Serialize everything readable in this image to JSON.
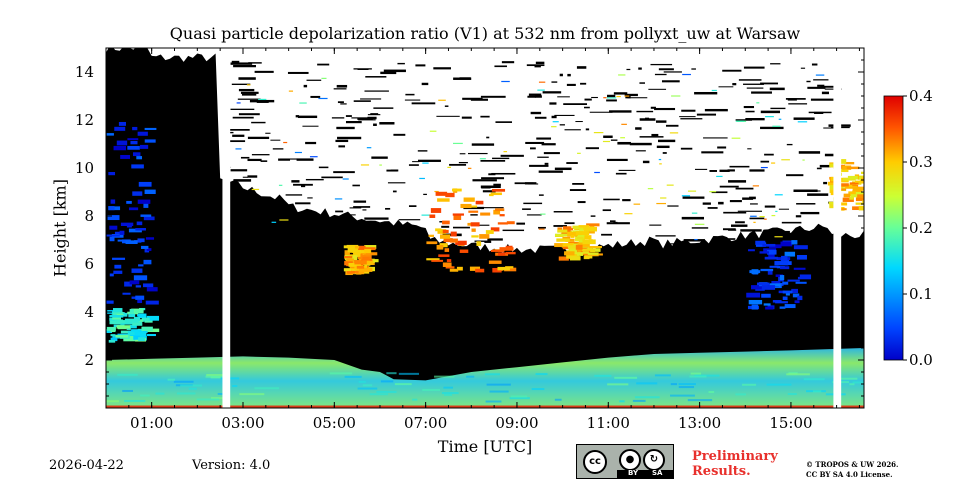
{
  "chart_data": {
    "type": "heatmap",
    "title": "Quasi particle depolarization ratio (V1) at 532 nm from pollyxt_uw at Warsaw",
    "xlabel": "Time [UTC]",
    "ylabel": "Height [km]",
    "xlim": [
      0,
      16.6
    ],
    "ylim": [
      0,
      15
    ],
    "x_ticks": [
      {
        "value": 1,
        "label": "01:00"
      },
      {
        "value": 3,
        "label": "03:00"
      },
      {
        "value": 5,
        "label": "05:00"
      },
      {
        "value": 7,
        "label": "07:00"
      },
      {
        "value": 9,
        "label": "09:00"
      },
      {
        "value": 11,
        "label": "11:00"
      },
      {
        "value": 13,
        "label": "13:00"
      },
      {
        "value": 15,
        "label": "15:00"
      }
    ],
    "y_ticks": [
      {
        "value": 2,
        "label": "2"
      },
      {
        "value": 4,
        "label": "4"
      },
      {
        "value": 6,
        "label": "6"
      },
      {
        "value": 8,
        "label": "8"
      },
      {
        "value": 10,
        "label": "10"
      },
      {
        "value": 12,
        "label": "12"
      },
      {
        "value": 14,
        "label": "14"
      }
    ],
    "colorbar": {
      "range": [
        0,
        0.4
      ],
      "ticks": [
        {
          "value": 0.0,
          "label": "0.0"
        },
        {
          "value": 0.1,
          "label": "0.1"
        },
        {
          "value": 0.2,
          "label": "0.2"
        },
        {
          "value": 0.3,
          "label": "0.3"
        },
        {
          "value": 0.4,
          "label": "0.4"
        }
      ]
    },
    "no_data_gaps": [
      [
        2.55,
        2.72
      ],
      [
        15.93,
        16.1
      ]
    ],
    "boundary_layer_top_km": [
      [
        0,
        2.0
      ],
      [
        1,
        2.05
      ],
      [
        2,
        2.1
      ],
      [
        3,
        2.15
      ],
      [
        4,
        2.1
      ],
      [
        5,
        2.0
      ],
      [
        5.6,
        1.6
      ],
      [
        6,
        1.5
      ],
      [
        6.3,
        1.2
      ],
      [
        7,
        1.15
      ],
      [
        8,
        1.5
      ],
      [
        9,
        1.7
      ],
      [
        10,
        1.9
      ],
      [
        11,
        2.1
      ],
      [
        12,
        2.25
      ],
      [
        13,
        2.3
      ],
      [
        14,
        2.35
      ],
      [
        15,
        2.4
      ],
      [
        16.6,
        2.5
      ]
    ],
    "aerosol_layers": [
      {
        "name": "elevated-layer-early",
        "t": [
          0.0,
          0.9
        ],
        "h": [
          2.8,
          4.2
        ],
        "value": 0.17
      },
      {
        "name": "blue-column-early",
        "t": [
          0.0,
          0.9
        ],
        "h": [
          4.2,
          12.0
        ],
        "value": 0.03
      },
      {
        "name": "depol-patch-0530",
        "t": [
          5.2,
          5.7
        ],
        "h": [
          5.7,
          6.8
        ],
        "value": 0.31
      },
      {
        "name": "cirrus-0700-0900",
        "t": [
          7.0,
          8.8
        ],
        "h": [
          5.8,
          9.2
        ],
        "value": 0.33
      },
      {
        "name": "cirrus-1000",
        "t": [
          9.8,
          10.6
        ],
        "h": [
          6.3,
          7.7
        ],
        "value": 0.3
      },
      {
        "name": "blue-columns-1400",
        "t": [
          14.0,
          15.2
        ],
        "h": [
          4.2,
          7.0
        ],
        "value": 0.04
      },
      {
        "name": "upper-layer-1600",
        "t": [
          15.8,
          16.6
        ],
        "h": [
          8.3,
          10.4
        ],
        "value": 0.3
      }
    ]
  },
  "footer": {
    "date": "2026-04-22",
    "version": "Version: 4.0",
    "preliminary": [
      "Preliminary",
      "Results."
    ],
    "license": [
      "© TROPOS & UW 2026.",
      "CC BY SA 4.0 License."
    ],
    "cc_badge": {
      "cc": "cc",
      "by": "BY",
      "sa": "SA"
    }
  }
}
